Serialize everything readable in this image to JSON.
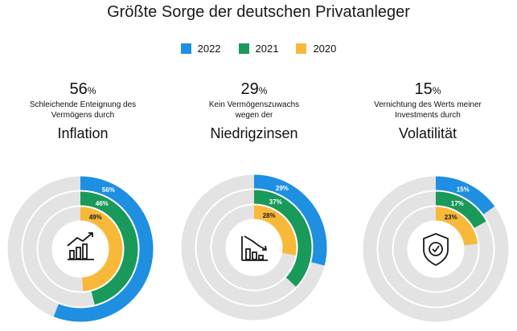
{
  "title": "Größte Sorge der deutschen Privatanleger",
  "legend": [
    {
      "label": "2022",
      "color": "#1e8fe1"
    },
    {
      "label": "2021",
      "color": "#1a9a5a"
    },
    {
      "label": "2020",
      "color": "#f8b93a"
    }
  ],
  "track_color": "#e3e3e3",
  "panels": [
    {
      "big_value": "56",
      "big_unit": "%",
      "subtitle_1": "Schleichende Enteignung des",
      "subtitle_2": "Vermögens durch",
      "category": "Inflation",
      "icon": "chart-up-icon"
    },
    {
      "big_value": "29",
      "big_unit": "%",
      "subtitle_1": "Kein Vermögenszuwachs",
      "subtitle_2": "wegen der",
      "category": "Niedrigzinsen",
      "icon": "chart-down-icon"
    },
    {
      "big_value": "15",
      "big_unit": "%",
      "subtitle_1": "Vernichtung des Werts meiner",
      "subtitle_2": "Investments durch",
      "category": "Volatilität",
      "icon": "shield-check-icon"
    }
  ],
  "chart_data": {
    "type": "radial-bar",
    "title": "Größte Sorge der deutschen Privatanleger",
    "categories": [
      "Inflation",
      "Niedrigzinsen",
      "Volatilität"
    ],
    "series": [
      {
        "name": "2022",
        "values": [
          56,
          29,
          15
        ],
        "labels": [
          "56%",
          "29%",
          "15%"
        ]
      },
      {
        "name": "2021",
        "values": [
          46,
          37,
          17
        ],
        "labels": [
          "46%",
          "37%",
          "17%"
        ]
      },
      {
        "name": "2020",
        "values": [
          49,
          28,
          23
        ],
        "labels": [
          "49%",
          "28%",
          "23%"
        ]
      }
    ],
    "max": 100
  }
}
